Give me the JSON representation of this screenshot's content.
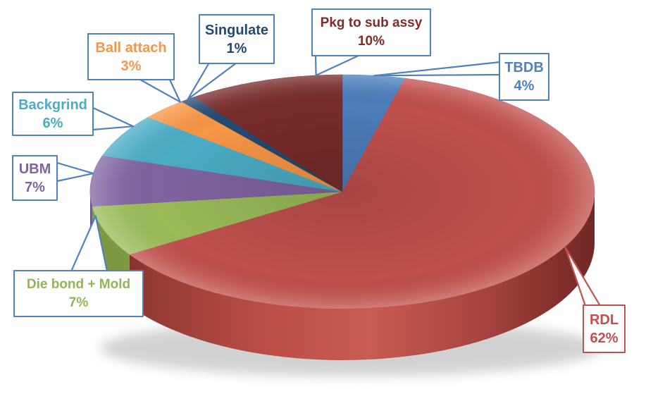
{
  "page": {
    "background_color": "#FFFFFF"
  },
  "chart_data": {
    "type": "pie",
    "is_3d": true,
    "title": "",
    "start_angle_deg": 0,
    "direction": "clockwise",
    "legend_position": "none",
    "label_style": "callout-boxes",
    "segments": [
      {
        "id": "tbdb",
        "label": "TBDB",
        "value_pct": 4,
        "color": "#4C7EBB"
      },
      {
        "id": "rdl",
        "label": "RDL",
        "value_pct": 62,
        "color": "#C0504D"
      },
      {
        "id": "die_bond_mold",
        "label": "Die bond + Mold",
        "value_pct": 7,
        "color": "#9BBB59"
      },
      {
        "id": "ubm",
        "label": "UBM",
        "value_pct": 7,
        "color": "#8064A2"
      },
      {
        "id": "backgrind",
        "label": "Backgrind",
        "value_pct": 6,
        "color": "#4BACC6"
      },
      {
        "id": "ball_attach",
        "label": "Ball attach",
        "value_pct": 3,
        "color": "#F79646"
      },
      {
        "id": "singulate",
        "label": "Singulate",
        "value_pct": 1,
        "color": "#254A72"
      },
      {
        "id": "pkg_to_sub_assy",
        "label": "Pkg to sub assy",
        "value_pct": 10,
        "color": "#772C2A"
      }
    ]
  },
  "callouts": {
    "ball_attach": {
      "label": "Ball attach",
      "value_text": "3%",
      "text_color": "#F79646",
      "border_color": "#4F81BD"
    },
    "singulate": {
      "label": "Singulate",
      "value_text": "1%",
      "text_color": "#254A72",
      "border_color": "#4F81BD"
    },
    "pkg_to_sub_assy": {
      "label": "Pkg to sub assy",
      "value_text": "10%",
      "text_color": "#7F2B28",
      "border_color": "#4F81BD"
    },
    "tbdb": {
      "label": "TBDB",
      "value_text": "4%",
      "text_color": "#4F81BD",
      "border_color": "#4F81BD"
    },
    "backgrind": {
      "label": "Backgrind",
      "value_text": "6%",
      "text_color": "#4BACC6",
      "border_color": "#4F81BD"
    },
    "ubm": {
      "label": "UBM",
      "value_text": "7%",
      "text_color": "#8064A2",
      "border_color": "#4F81BD"
    },
    "die_bond_mold": {
      "label": "Die bond + Mold",
      "value_text": "7%",
      "text_color": "#94B455",
      "border_color": "#4F81BD"
    },
    "rdl": {
      "label": "RDL",
      "value_text": "62%",
      "text_color": "#C0504D",
      "border_color": "#C0504D"
    }
  }
}
